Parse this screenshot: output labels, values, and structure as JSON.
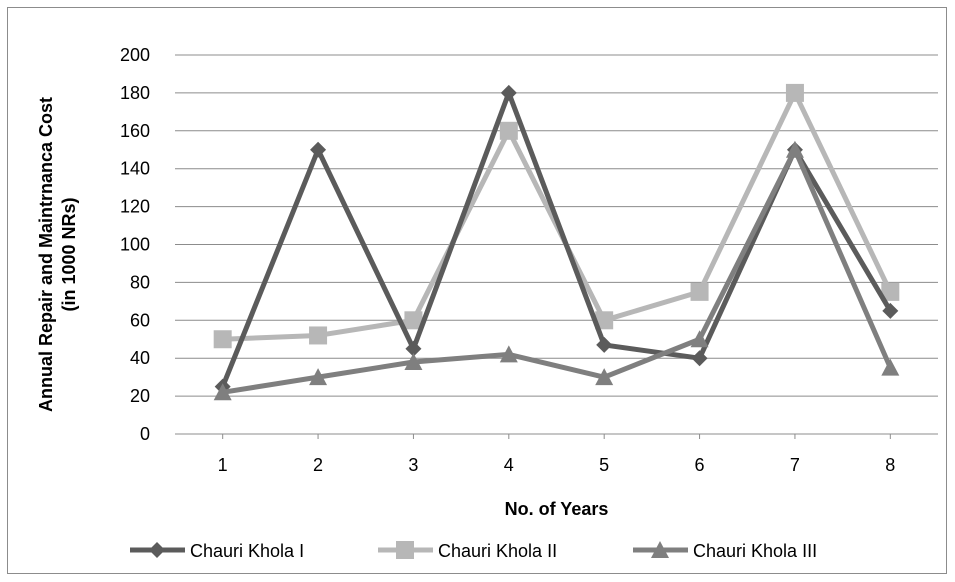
{
  "chart_data": {
    "type": "line",
    "title": "",
    "xlabel": "No. of Years",
    "ylabel_line1": "Annual Repair and Maintrnanca Cost",
    "ylabel_line2": "(in 1000 NRs)",
    "x": [
      1,
      2,
      3,
      4,
      5,
      6,
      7,
      8
    ],
    "ylim": [
      0,
      200
    ],
    "yticks": [
      0,
      20,
      40,
      60,
      80,
      100,
      120,
      140,
      160,
      180,
      200
    ],
    "grid": true,
    "legend_position": "bottom",
    "series": [
      {
        "name": "Chauri Khola I",
        "values": [
          25,
          150,
          45,
          180,
          47,
          40,
          150,
          65
        ],
        "color": "#5b5b5b",
        "marker": "diamond"
      },
      {
        "name": "Chauri Khola II",
        "values": [
          50,
          52,
          60,
          160,
          60,
          75,
          180,
          75
        ],
        "color": "#b7b7b7",
        "marker": "square"
      },
      {
        "name": "Chauri Khola III",
        "values": [
          22,
          30,
          38,
          42,
          30,
          50,
          150,
          35
        ],
        "color": "#7f7f7f",
        "marker": "triangle"
      }
    ]
  }
}
